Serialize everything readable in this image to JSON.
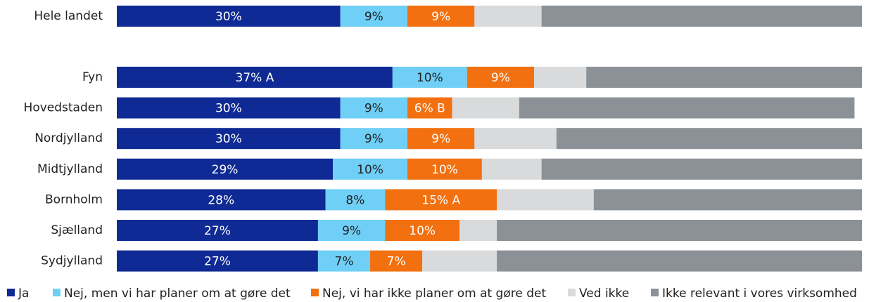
{
  "chart_data": {
    "type": "stacked-bar-horizontal",
    "categories": [
      "Hele landet",
      "Fyn",
      "Hovedstaden",
      "Nordjylland",
      "Midtjylland",
      "Bornholm",
      "Sjælland",
      "Sydjylland"
    ],
    "xlim": [
      0,
      100
    ],
    "legend": "bottom",
    "series": [
      {
        "name": "Ja",
        "color": "#0f2a94",
        "values": [
          30,
          37,
          30,
          30,
          29,
          28,
          27,
          27
        ],
        "value_labels": [
          "30%",
          "37% A",
          "30%",
          "30%",
          "29%",
          "28%",
          "27%",
          "27%"
        ]
      },
      {
        "name": "Nej, men vi har planer om at gøre det",
        "color": "#6fcff6",
        "values": [
          9,
          10,
          9,
          9,
          10,
          8,
          9,
          7
        ],
        "value_labels": [
          "9%",
          "10%",
          "9%",
          "9%",
          "10%",
          "8%",
          "9%",
          "7%"
        ]
      },
      {
        "name": "Nej, vi har ikke planer om at gøre det",
        "color": "#f2700f",
        "values": [
          9,
          9,
          6,
          9,
          10,
          15,
          10,
          7
        ],
        "value_labels": [
          "9%",
          "9%",
          "6% B",
          "9%",
          "10%",
          "15% A",
          "10%",
          "7%"
        ]
      },
      {
        "name": "Ved ikke",
        "color": "#d9dadb",
        "values": [
          9,
          7,
          9,
          11,
          8,
          13,
          5,
          10
        ]
      },
      {
        "name": "Ikke relevant i vores virksomhed",
        "color": "#8b9196",
        "values": [
          43,
          37,
          45,
          41,
          43,
          36,
          49,
          49
        ]
      }
    ]
  }
}
